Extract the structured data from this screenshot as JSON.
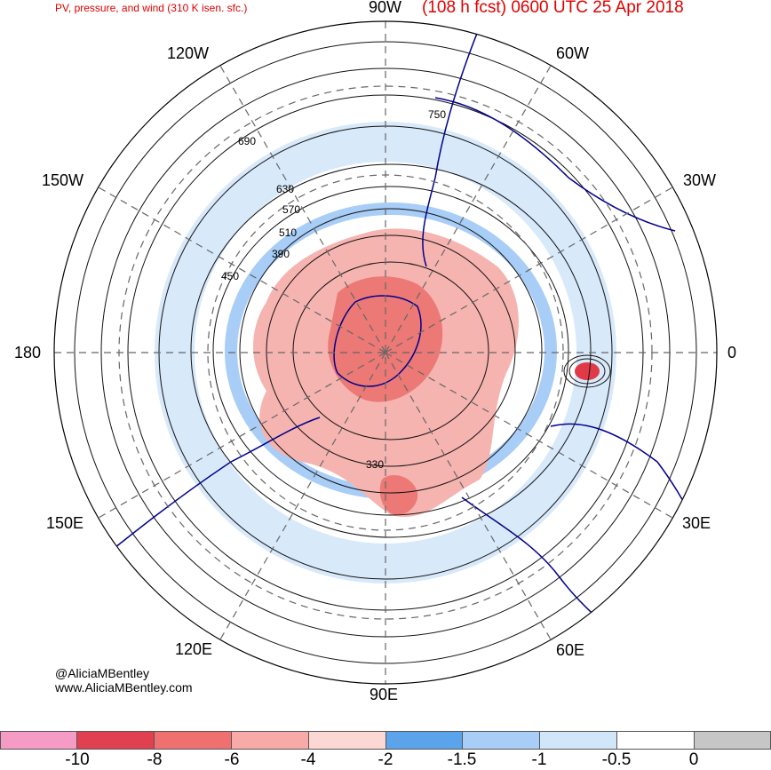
{
  "header": {
    "product": "PV, pressure, and wind (310 K isen. sfc.)",
    "forecast": "(108 h fcst) 0600 UTC 25 Apr 2018"
  },
  "longitude_labels": [
    "90W",
    "60W",
    "30W",
    "0",
    "30E",
    "60E",
    "90E",
    "120E",
    "150E",
    "180",
    "150W",
    "120W"
  ],
  "contour_labels": [
    "750",
    "690",
    "630",
    "570",
    "510",
    "450",
    "390",
    "330"
  ],
  "credits": {
    "handle": "@AliciaMBentley",
    "website": "www.AliciaMBentley.com"
  },
  "colorbar": {
    "ticks": [
      "-10",
      "-8",
      "-6",
      "-4",
      "-2",
      "-1.5",
      "-1",
      "-0.5",
      "0"
    ],
    "colors": [
      "#f59bc6",
      "#e04050",
      "#f07070",
      "#f8aaa8",
      "#fbd8d4",
      "#5ba4ec",
      "#a8cdf6",
      "#d2e6fa",
      "#ffffff",
      "#c6c6c6"
    ]
  },
  "map_colors": {
    "land_outline": "#00008b",
    "pv_negative": "#f2a8a6",
    "pv_strong": "#e05a5a",
    "pv_weak": "#a8cdf6",
    "contour": "#111111"
  }
}
